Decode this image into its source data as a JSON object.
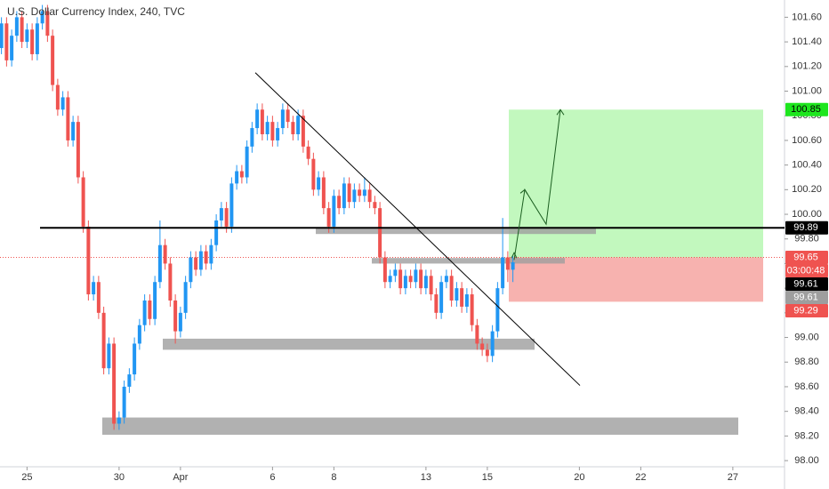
{
  "chart_data": {
    "type": "candlestick",
    "title": "U.S. Dollar Currency Index, 240, TVC",
    "up_color": "#2196f3",
    "down_color": "#ef5350",
    "categories": [
      null,
      null,
      null,
      null,
      null,
      null,
      "25",
      null,
      null,
      null,
      null,
      null,
      null,
      null,
      null,
      null,
      null,
      null,
      null,
      null,
      null,
      null,
      null,
      null,
      "30",
      null,
      null,
      null,
      null,
      null,
      null,
      null,
      null,
      null,
      null,
      null,
      "Apr",
      null,
      null,
      null,
      null,
      null,
      null,
      null,
      null,
      null,
      null,
      null,
      null,
      null,
      null,
      null,
      null,
      null,
      "6",
      null,
      null,
      null,
      null,
      null,
      null,
      null,
      null,
      null,
      null,
      null,
      "8",
      null,
      null,
      null,
      null,
      null,
      null,
      null,
      null,
      null,
      null,
      null,
      null,
      null,
      null,
      null,
      null,
      null,
      "13",
      null,
      null,
      null,
      null,
      null,
      null,
      null,
      null,
      null,
      null,
      null,
      "15",
      null,
      null,
      null,
      null,
      null,
      null,
      null,
      null,
      null,
      null,
      null,
      null,
      null,
      null,
      null,
      null,
      null,
      "20",
      null,
      null,
      null,
      null,
      null,
      null,
      null,
      null,
      null,
      null,
      null,
      "22",
      null,
      null,
      null,
      null,
      null,
      null,
      null,
      null,
      null,
      null,
      null,
      null,
      null,
      null,
      null,
      null,
      null,
      "27",
      null,
      null,
      null,
      null,
      null
    ],
    "open": [
      101.3,
      101.35,
      101.55,
      101.25,
      101.45,
      101.6,
      101.4,
      101.5,
      101.3,
      101.55,
      101.65,
      101.45,
      101.05,
      100.85,
      100.95,
      100.6,
      100.75,
      100.3,
      99.9,
      99.35,
      99.45,
      99.2,
      98.75,
      98.95,
      98.3,
      98.35,
      98.6,
      98.7,
      98.95,
      99.1,
      99.3,
      99.15,
      99.45,
      99.75,
      99.6,
      99.3,
      99.05,
      99.2,
      99.45,
      99.65,
      99.55,
      99.7,
      99.6,
      99.75,
      99.95,
      100.05,
      99.9,
      100.25,
      100.35,
      100.3,
      100.55,
      100.7,
      100.85,
      100.65,
      100.75,
      100.6,
      100.7,
      100.85,
      100.75,
      100.65,
      100.8,
      100.55,
      100.45,
      100.2,
      100.3,
      100.05,
      99.9,
      100.15,
      100.05,
      100.25,
      100.1,
      100.2,
      100.15,
      100.2,
      100.1,
      100.05,
      99.65,
      99.45,
      99.5,
      99.55,
      99.4,
      99.5,
      99.45,
      99.55,
      99.4,
      99.5,
      99.35,
      99.2,
      99.45,
      99.5,
      99.3,
      99.4,
      99.25,
      99.35,
      99.1,
      98.95,
      98.9,
      98.85,
      99.05,
      99.4,
      99.65,
      99.55,
      null,
      null,
      null,
      null,
      null,
      null,
      null,
      null,
      null,
      null,
      null,
      null,
      null,
      null,
      null,
      null,
      null,
      null,
      null,
      null,
      null,
      null,
      null,
      null,
      null,
      null,
      null,
      null,
      null,
      null,
      null,
      null,
      null,
      null,
      null,
      null,
      null,
      null,
      null,
      null,
      null,
      null,
      null,
      null,
      null,
      null,
      null,
      null
    ],
    "high": [
      101.4,
      101.6,
      101.6,
      101.5,
      101.65,
      101.65,
      101.55,
      101.55,
      101.6,
      101.7,
      101.7,
      101.5,
      101.1,
      101.0,
      101.0,
      100.8,
      100.8,
      100.35,
      99.95,
      99.5,
      99.5,
      99.25,
      99.0,
      99.0,
      98.4,
      98.65,
      98.75,
      99.0,
      99.15,
      99.35,
      99.35,
      99.5,
      99.95,
      99.8,
      99.65,
      99.35,
      99.25,
      99.5,
      99.7,
      99.7,
      99.75,
      99.75,
      99.8,
      100.0,
      100.1,
      100.1,
      100.3,
      100.4,
      100.4,
      100.6,
      100.75,
      100.9,
      100.9,
      100.8,
      100.8,
      100.75,
      100.9,
      100.9,
      100.8,
      100.85,
      100.85,
      100.6,
      100.5,
      100.35,
      100.35,
      100.1,
      100.2,
      100.2,
      100.3,
      100.3,
      100.25,
      100.25,
      100.3,
      100.25,
      100.15,
      100.1,
      99.7,
      99.55,
      99.6,
      99.6,
      99.55,
      99.55,
      99.6,
      99.6,
      99.55,
      99.55,
      99.4,
      99.5,
      99.55,
      99.55,
      99.45,
      99.45,
      99.4,
      99.4,
      99.15,
      99.0,
      98.95,
      99.1,
      99.45,
      99.97,
      99.7,
      99.66,
      null,
      null,
      null,
      null,
      null,
      null,
      null,
      null,
      null,
      null,
      null,
      null,
      null,
      null,
      null,
      null,
      null,
      null,
      null,
      null,
      null,
      null,
      null,
      null,
      null,
      null,
      null,
      null,
      null,
      null,
      null,
      null,
      null,
      null,
      null,
      null,
      null,
      null,
      null,
      null,
      null,
      null,
      null,
      null,
      null,
      null,
      null,
      null
    ],
    "low": [
      101.25,
      101.3,
      101.2,
      101.2,
      101.4,
      101.35,
      101.35,
      101.25,
      101.25,
      101.5,
      101.4,
      101.0,
      100.8,
      100.8,
      100.55,
      100.55,
      100.25,
      99.85,
      99.3,
      99.3,
      99.15,
      98.7,
      98.7,
      98.25,
      98.25,
      98.3,
      98.55,
      98.65,
      98.9,
      99.05,
      99.1,
      99.1,
      99.4,
      99.55,
      99.25,
      98.95,
      99.0,
      99.15,
      99.4,
      99.5,
      99.5,
      99.55,
      99.55,
      99.7,
      99.9,
      99.85,
      99.85,
      100.2,
      100.25,
      100.25,
      100.5,
      100.65,
      100.6,
      100.6,
      100.55,
      100.55,
      100.65,
      100.7,
      100.6,
      100.6,
      100.5,
      100.4,
      100.15,
      100.15,
      100.0,
      99.85,
      99.85,
      100.0,
      100.0,
      100.05,
      100.05,
      100.1,
      100.1,
      100.05,
      100.0,
      99.6,
      99.4,
      99.4,
      99.45,
      99.35,
      99.35,
      99.4,
      99.4,
      99.35,
      99.35,
      99.3,
      99.15,
      99.15,
      99.4,
      99.25,
      99.25,
      99.2,
      99.2,
      99.05,
      98.9,
      98.85,
      98.8,
      98.8,
      99.0,
      99.35,
      99.45,
      99.45,
      null,
      null,
      null,
      null,
      null,
      null,
      null,
      null,
      null,
      null,
      null,
      null,
      null,
      null,
      null,
      null,
      null,
      null,
      null,
      null,
      null,
      null,
      null,
      null,
      null,
      null,
      null,
      null,
      null,
      null,
      null,
      null,
      null,
      null,
      null,
      null,
      null,
      null,
      null,
      null,
      null,
      null,
      null,
      null,
      null,
      null,
      null,
      null
    ],
    "close": [
      101.35,
      101.55,
      101.25,
      101.45,
      101.6,
      101.4,
      101.5,
      101.3,
      101.55,
      101.65,
      101.45,
      101.05,
      100.85,
      100.95,
      100.6,
      100.75,
      100.3,
      99.9,
      99.35,
      99.45,
      99.2,
      98.75,
      98.95,
      98.3,
      98.35,
      98.6,
      98.7,
      98.95,
      99.1,
      99.3,
      99.15,
      99.45,
      99.75,
      99.6,
      99.3,
      99.05,
      99.2,
      99.45,
      99.65,
      99.55,
      99.7,
      99.6,
      99.75,
      99.95,
      100.05,
      99.9,
      100.25,
      100.35,
      100.3,
      100.55,
      100.7,
      100.85,
      100.65,
      100.75,
      100.6,
      100.7,
      100.85,
      100.75,
      100.65,
      100.8,
      100.55,
      100.45,
      100.2,
      100.3,
      100.05,
      99.9,
      100.15,
      100.05,
      100.25,
      100.1,
      100.2,
      100.15,
      100.2,
      100.1,
      100.05,
      99.65,
      99.45,
      99.5,
      99.55,
      99.4,
      99.5,
      99.45,
      99.55,
      99.4,
      99.5,
      99.35,
      99.2,
      99.45,
      99.5,
      99.3,
      99.4,
      99.25,
      99.35,
      99.1,
      98.95,
      98.9,
      98.85,
      99.05,
      99.4,
      99.65,
      99.55,
      99.61,
      null,
      null,
      null,
      null,
      null,
      null,
      null,
      null,
      null,
      null,
      null,
      null,
      null,
      null,
      null,
      null,
      null,
      null,
      null,
      null,
      null,
      null,
      null,
      null,
      null,
      null,
      null,
      null,
      null,
      null,
      null,
      null,
      null,
      null,
      null,
      null,
      null,
      null,
      null,
      null,
      null,
      null,
      null,
      null,
      null,
      null,
      null,
      null
    ],
    "ylim": [
      97.95,
      101.74
    ],
    "yticks": [
      {
        "value": 98,
        "label": "98.00"
      },
      {
        "value": 98.2,
        "label": "98.20"
      },
      {
        "value": 98.4,
        "label": "98.40"
      },
      {
        "value": 98.6,
        "label": "98.60"
      },
      {
        "value": 98.8,
        "label": "98.80"
      },
      {
        "value": 99,
        "label": "99.00"
      },
      {
        "value": 99.2,
        "label": "99.20"
      },
      {
        "value": 99.4,
        "label": "99.40"
      },
      {
        "value": 99.6,
        "label": "99.60"
      },
      {
        "value": 99.8,
        "label": "99.80"
      },
      {
        "value": 100,
        "label": "100.00"
      },
      {
        "value": 100.2,
        "label": "100.20"
      },
      {
        "value": 100.4,
        "label": "100.40"
      },
      {
        "value": 100.6,
        "label": "100.60"
      },
      {
        "value": 100.8,
        "label": "100.80"
      },
      {
        "value": 101,
        "label": "101.00"
      },
      {
        "value": 101.2,
        "label": "101.20"
      },
      {
        "value": 101.4,
        "label": "101.40"
      },
      {
        "value": 101.6,
        "label": "101.60"
      }
    ],
    "horizontal_line": 99.89,
    "current_price_line": 99.65,
    "zones": [
      {
        "top": 99.89,
        "bottom": 99.84
      },
      {
        "top": 99.645,
        "bottom": 99.6
      },
      {
        "top": 98.99,
        "bottom": 98.9
      },
      {
        "top": 98.35,
        "bottom": 98.21
      }
    ],
    "trendline": [
      101.15,
      98.61
    ],
    "long_position": {
      "target": 100.85,
      "entry": 99.65,
      "stop": 99.29
    },
    "projection": [
      99.63,
      100.2,
      99.92,
      100.85
    ],
    "price_labels": [
      {
        "value": 100.85,
        "color": "#1ee61e",
        "text_color": "#000000"
      },
      {
        "value": 99.89,
        "color": "#000000",
        "text_color": "#ffffff"
      },
      {
        "value": 99.65,
        "color": "#ef5350",
        "text_color": "#ffffff"
      },
      {
        "text": "03:00:48",
        "color": "#ef5350",
        "text_color": "#ffffff"
      },
      {
        "value": 99.61,
        "color": "#000000",
        "text_color": "#ffffff"
      },
      {
        "value": 99.61,
        "color": "#9e9e9e",
        "text_color": "#ffffff"
      },
      {
        "value": 99.29,
        "color": "#ef5350",
        "text_color": "#ffffff"
      }
    ]
  }
}
